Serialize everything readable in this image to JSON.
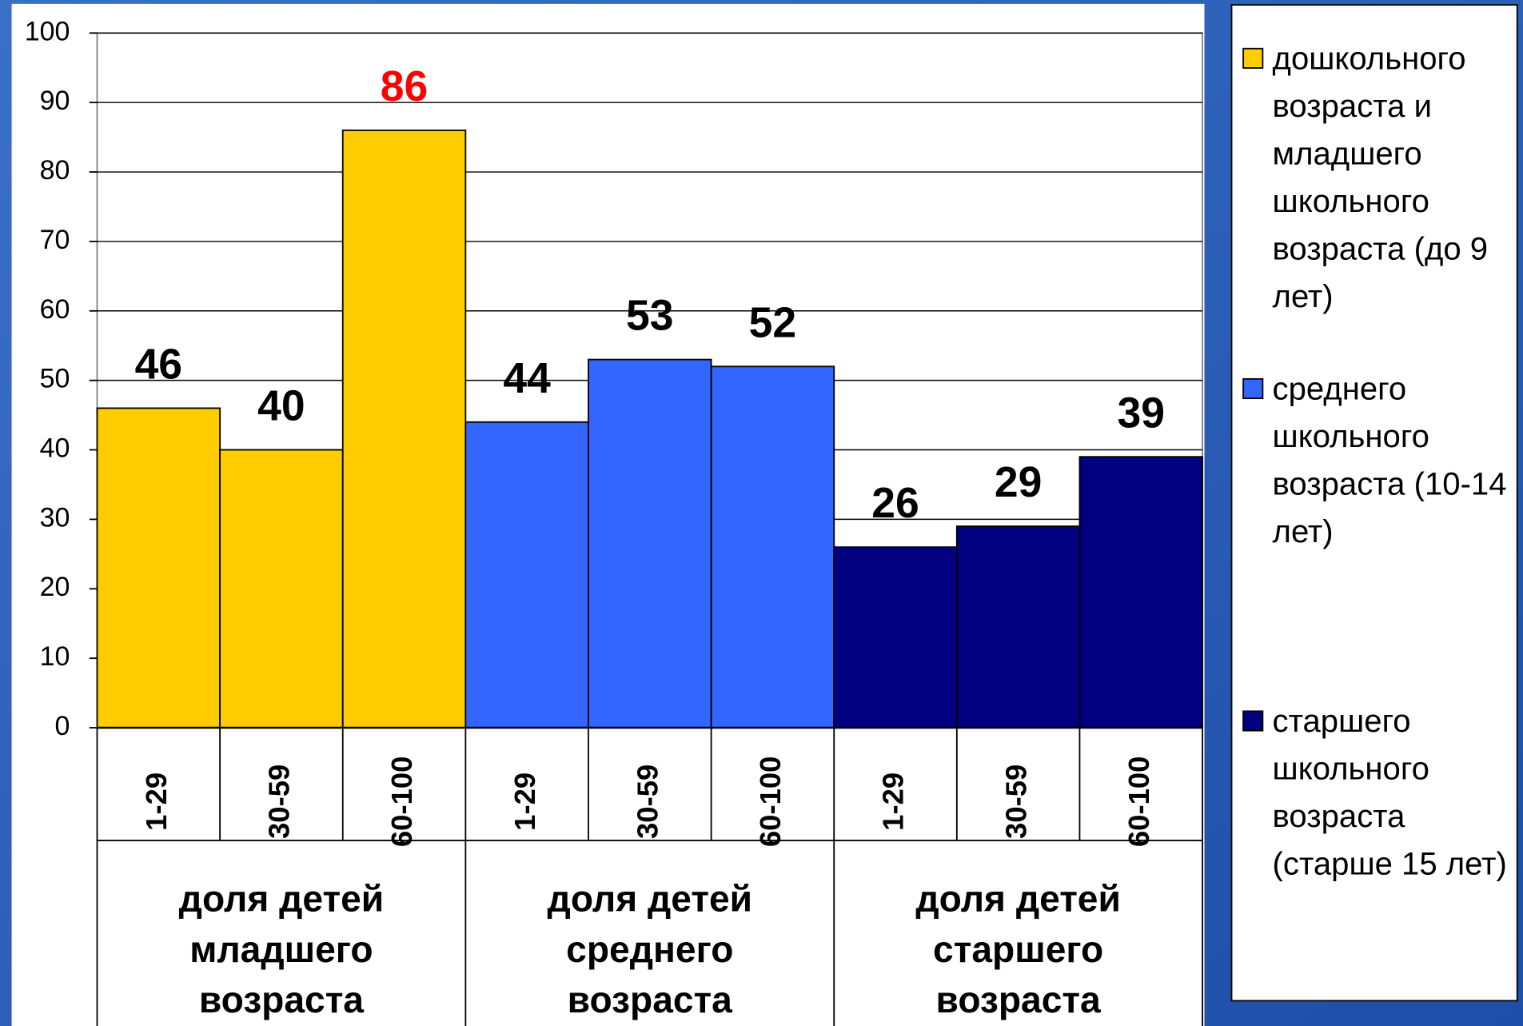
{
  "chart_data": {
    "type": "bar",
    "categories": [
      "1-29",
      "30-59",
      "60-100",
      "1-29",
      "30-59",
      "60-100",
      "1-29",
      "30-59",
      "60-100"
    ],
    "groups": [
      "доля детей младшего возраста",
      "доля детей среднего возраста",
      "доля детей старшего возраста"
    ],
    "series": [
      {
        "name": "дошкольного возраста и младшего школьного возраста (до 9 лет)",
        "color": "#ffcc00",
        "values": [
          46,
          40,
          86,
          null,
          null,
          null,
          null,
          null,
          null
        ],
        "label_colors": [
          "#000000",
          "#000000",
          "#ff0000",
          null,
          null,
          null,
          null,
          null,
          null
        ]
      },
      {
        "name": "среднего школьного возраста (10-14 лет)",
        "color": "#3366ff",
        "values": [
          null,
          null,
          null,
          44,
          53,
          52,
          null,
          null,
          null
        ],
        "label_colors": [
          null,
          null,
          null,
          "#000000",
          "#000000",
          "#000000",
          null,
          null,
          null
        ]
      },
      {
        "name": "старшего школьного возраста (старше 15 лет)",
        "color": "#000080",
        "values": [
          null,
          null,
          null,
          null,
          null,
          null,
          26,
          29,
          39
        ],
        "label_colors": [
          null,
          null,
          null,
          null,
          null,
          null,
          "#000000",
          "#000000",
          "#000000"
        ]
      }
    ],
    "ylim": [
      0,
      100
    ],
    "yticks": [
      0,
      10,
      20,
      30,
      40,
      50,
      60,
      70,
      80,
      90,
      100
    ],
    "grid": true,
    "legend": "right"
  }
}
